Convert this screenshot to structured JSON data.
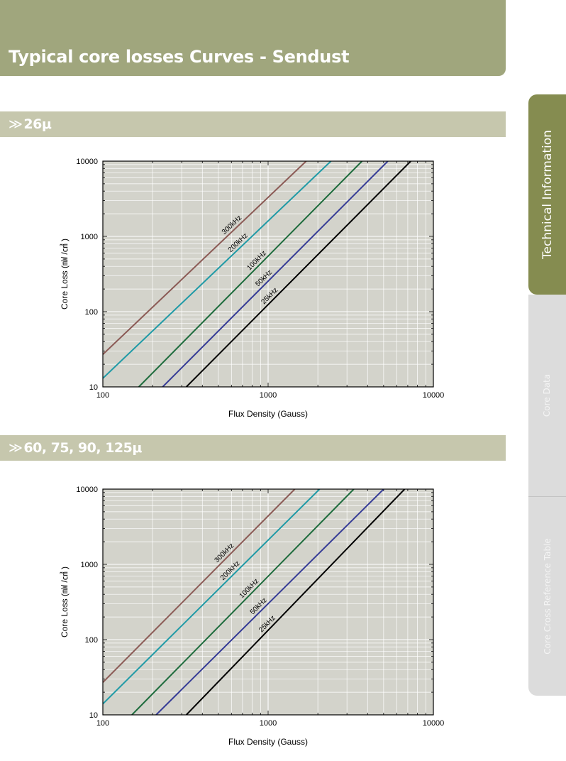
{
  "header": {
    "title": "Typical core losses Curves - Sendust"
  },
  "sidebar": {
    "tabs": [
      {
        "label": "Technical Information",
        "active": true
      },
      {
        "label": "Core Data",
        "active": false
      },
      {
        "label": "Core Cross Reference Table",
        "active": false
      }
    ]
  },
  "sections": [
    {
      "chevron": "≫",
      "label": "26μ"
    },
    {
      "chevron": "≫",
      "label": "60, 75, 90, 125μ"
    }
  ],
  "chart_data": [
    {
      "type": "line",
      "title": "",
      "xlabel": "Flux Density (Gauss)",
      "ylabel": "Core Loss (㎽ /㎤ )",
      "xscale": "log",
      "yscale": "log",
      "xlim": [
        100,
        10000
      ],
      "ylim": [
        10,
        10000
      ],
      "xticks": [
        100,
        1000,
        10000
      ],
      "yticks": [
        10,
        100,
        1000,
        10000
      ],
      "xtick_labels": [
        "100",
        "1000",
        "10000"
      ],
      "ytick_labels": [
        "10",
        "100",
        "1000",
        "10000"
      ],
      "grid": true,
      "background": "#d3d3cb",
      "series": [
        {
          "name": "300kHz",
          "color": "#8b5a55",
          "x": [
            100,
            1700
          ],
          "y": [
            27,
            10000
          ]
        },
        {
          "name": "200kHz",
          "color": "#1f9aa6",
          "x": [
            100,
            2400
          ],
          "y": [
            13,
            10000
          ]
        },
        {
          "name": "100kHz",
          "color": "#1d6b3c",
          "x": [
            165,
            3700
          ],
          "y": [
            10,
            10000
          ]
        },
        {
          "name": "50kHz",
          "color": "#353b96",
          "x": [
            230,
            5300
          ],
          "y": [
            10,
            10000
          ]
        },
        {
          "name": "25kHz",
          "color": "#000000",
          "x": [
            320,
            7300
          ],
          "y": [
            10,
            10000
          ]
        }
      ]
    },
    {
      "type": "line",
      "title": "",
      "xlabel": "Flux Density (Gauss)",
      "ylabel": "Core Loss (㎽ /㎤ )",
      "xscale": "log",
      "yscale": "log",
      "xlim": [
        100,
        10000
      ],
      "ylim": [
        10,
        10000
      ],
      "xticks": [
        100,
        1000,
        10000
      ],
      "yticks": [
        10,
        100,
        1000,
        10000
      ],
      "xtick_labels": [
        "100",
        "1000",
        "10000"
      ],
      "ytick_labels": [
        "10",
        "100",
        "1000",
        "10000"
      ],
      "grid": true,
      "background": "#d3d3cb",
      "series": [
        {
          "name": "300kHz",
          "color": "#8b5a55",
          "x": [
            100,
            1450
          ],
          "y": [
            27,
            10000
          ]
        },
        {
          "name": "200kHz",
          "color": "#1f9aa6",
          "x": [
            100,
            2050
          ],
          "y": [
            14,
            10000
          ]
        },
        {
          "name": "100kHz",
          "color": "#1d6b3c",
          "x": [
            150,
            3300
          ],
          "y": [
            10,
            10000
          ]
        },
        {
          "name": "50kHz",
          "color": "#353b96",
          "x": [
            210,
            5000
          ],
          "y": [
            10,
            10000
          ]
        },
        {
          "name": "25kHz",
          "color": "#000000",
          "x": [
            320,
            6700
          ],
          "y": [
            10,
            10000
          ]
        }
      ]
    }
  ]
}
